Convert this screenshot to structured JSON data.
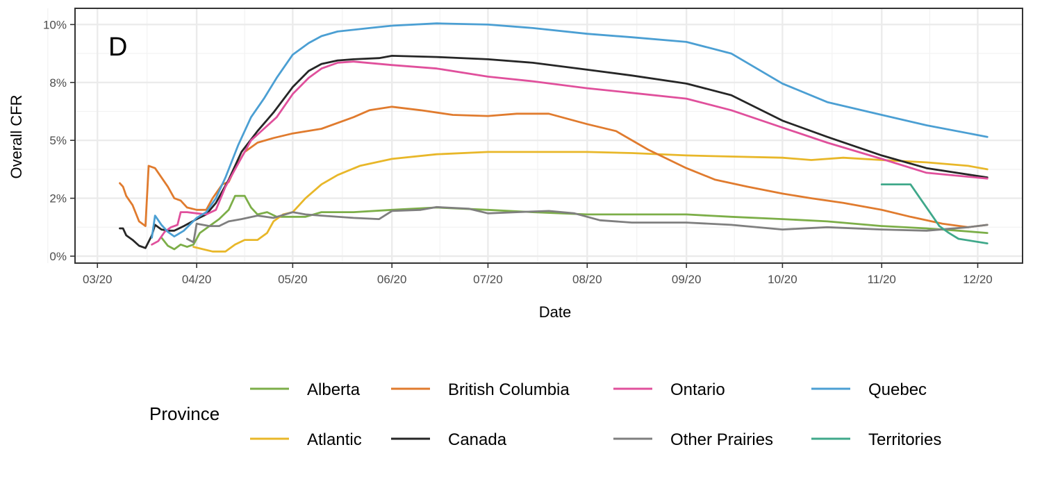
{
  "chart_data": {
    "type": "line",
    "panel_label": "D",
    "xlabel": "Date",
    "ylabel": "Overall CFR",
    "x_ticks": [
      "03/20",
      "04/20",
      "05/20",
      "06/20",
      "07/20",
      "08/20",
      "09/20",
      "10/20",
      "11/20",
      "12/20"
    ],
    "y_ticks": [
      "0%",
      "2%",
      "5%",
      "8%",
      "10%"
    ],
    "y_tick_values": [
      0,
      0.025,
      0.05,
      0.075,
      0.1
    ],
    "xlim": [
      "2020-02-23",
      "2020-12-15"
    ],
    "ylim": [
      -0.003,
      0.107
    ],
    "grid": true,
    "legend": {
      "title": "Province",
      "position": "bottom"
    },
    "series": [
      {
        "name": "Alberta",
        "color": "#7CAE48",
        "points": [
          [
            "2020-03-21",
            0.008
          ],
          [
            "2020-03-23",
            0.0045
          ],
          [
            "2020-03-25",
            0.003
          ],
          [
            "2020-03-27",
            0.005
          ],
          [
            "2020-03-29",
            0.004
          ],
          [
            "2020-03-31",
            0.005
          ],
          [
            "2020-04-02",
            0.01
          ],
          [
            "2020-04-05",
            0.013
          ],
          [
            "2020-04-08",
            0.016
          ],
          [
            "2020-04-11",
            0.02
          ],
          [
            "2020-04-13",
            0.026
          ],
          [
            "2020-04-16",
            0.026
          ],
          [
            "2020-04-18",
            0.021
          ],
          [
            "2020-04-20",
            0.018
          ],
          [
            "2020-04-23",
            0.019
          ],
          [
            "2020-04-26",
            0.017
          ],
          [
            "2020-04-30",
            0.017
          ],
          [
            "2020-05-05",
            0.017
          ],
          [
            "2020-05-10",
            0.019
          ],
          [
            "2020-05-20",
            0.019
          ],
          [
            "2020-06-01",
            0.02
          ],
          [
            "2020-06-15",
            0.021
          ],
          [
            "2020-07-01",
            0.02
          ],
          [
            "2020-07-15",
            0.019
          ],
          [
            "2020-08-01",
            0.018
          ],
          [
            "2020-08-15",
            0.018
          ],
          [
            "2020-09-01",
            0.018
          ],
          [
            "2020-09-15",
            0.017
          ],
          [
            "2020-10-01",
            0.016
          ],
          [
            "2020-10-15",
            0.015
          ],
          [
            "2020-11-01",
            0.013
          ],
          [
            "2020-11-15",
            0.012
          ],
          [
            "2020-11-25",
            0.011
          ],
          [
            "2020-12-04",
            0.01
          ]
        ]
      },
      {
        "name": "Atlantic",
        "color": "#E8B729",
        "points": [
          [
            "2020-03-31",
            0.004
          ],
          [
            "2020-04-03",
            0.003
          ],
          [
            "2020-04-06",
            0.002
          ],
          [
            "2020-04-10",
            0.002
          ],
          [
            "2020-04-13",
            0.005
          ],
          [
            "2020-04-16",
            0.007
          ],
          [
            "2020-04-20",
            0.007
          ],
          [
            "2020-04-23",
            0.01
          ],
          [
            "2020-04-25",
            0.015
          ],
          [
            "2020-04-28",
            0.018
          ],
          [
            "2020-05-01",
            0.019
          ],
          [
            "2020-05-05",
            0.025
          ],
          [
            "2020-05-10",
            0.031
          ],
          [
            "2020-05-15",
            0.035
          ],
          [
            "2020-05-22",
            0.039
          ],
          [
            "2020-06-01",
            0.042
          ],
          [
            "2020-06-15",
            0.044
          ],
          [
            "2020-07-01",
            0.045
          ],
          [
            "2020-07-15",
            0.045
          ],
          [
            "2020-08-01",
            0.045
          ],
          [
            "2020-08-15",
            0.0445
          ],
          [
            "2020-09-01",
            0.0435
          ],
          [
            "2020-09-15",
            0.043
          ],
          [
            "2020-10-01",
            0.0425
          ],
          [
            "2020-10-10",
            0.0415
          ],
          [
            "2020-10-20",
            0.0425
          ],
          [
            "2020-11-01",
            0.0415
          ],
          [
            "2020-11-15",
            0.0405
          ],
          [
            "2020-11-28",
            0.039
          ],
          [
            "2020-12-04",
            0.0375
          ]
        ]
      },
      {
        "name": "British Columbia",
        "color": "#E07B2E",
        "points": [
          [
            "2020-03-08",
            0.0315
          ],
          [
            "2020-03-09",
            0.03
          ],
          [
            "2020-03-10",
            0.026
          ],
          [
            "2020-03-12",
            0.022
          ],
          [
            "2020-03-14",
            0.015
          ],
          [
            "2020-03-16",
            0.013
          ],
          [
            "2020-03-17",
            0.039
          ],
          [
            "2020-03-19",
            0.038
          ],
          [
            "2020-03-21",
            0.034
          ],
          [
            "2020-03-23",
            0.03
          ],
          [
            "2020-03-25",
            0.025
          ],
          [
            "2020-03-27",
            0.024
          ],
          [
            "2020-03-29",
            0.021
          ],
          [
            "2020-04-01",
            0.02
          ],
          [
            "2020-04-04",
            0.02
          ],
          [
            "2020-04-06",
            0.025
          ],
          [
            "2020-04-09",
            0.031
          ],
          [
            "2020-04-11",
            0.032
          ],
          [
            "2020-04-13",
            0.038
          ],
          [
            "2020-04-16",
            0.045
          ],
          [
            "2020-04-20",
            0.049
          ],
          [
            "2020-04-25",
            0.051
          ],
          [
            "2020-05-01",
            0.053
          ],
          [
            "2020-05-10",
            0.055
          ],
          [
            "2020-05-20",
            0.06
          ],
          [
            "2020-05-25",
            0.063
          ],
          [
            "2020-06-01",
            0.0645
          ],
          [
            "2020-06-10",
            0.063
          ],
          [
            "2020-06-20",
            0.061
          ],
          [
            "2020-07-01",
            0.0605
          ],
          [
            "2020-07-10",
            0.0615
          ],
          [
            "2020-07-20",
            0.0615
          ],
          [
            "2020-08-01",
            0.057
          ],
          [
            "2020-08-10",
            0.054
          ],
          [
            "2020-08-20",
            0.046
          ],
          [
            "2020-09-01",
            0.038
          ],
          [
            "2020-09-10",
            0.033
          ],
          [
            "2020-09-20",
            0.03
          ],
          [
            "2020-10-01",
            0.027
          ],
          [
            "2020-10-10",
            0.025
          ],
          [
            "2020-10-20",
            0.023
          ],
          [
            "2020-11-01",
            0.02
          ],
          [
            "2020-11-10",
            0.017
          ],
          [
            "2020-11-20",
            0.014
          ],
          [
            "2020-11-28",
            0.0125
          ],
          [
            "2020-12-04",
            0.0135
          ]
        ]
      },
      {
        "name": "Canada",
        "color": "#262626",
        "points": [
          [
            "2020-03-08",
            0.012
          ],
          [
            "2020-03-09",
            0.012
          ],
          [
            "2020-03-10",
            0.009
          ],
          [
            "2020-03-12",
            0.007
          ],
          [
            "2020-03-14",
            0.0045
          ],
          [
            "2020-03-16",
            0.0035
          ],
          [
            "2020-03-18",
            0.009
          ],
          [
            "2020-03-19",
            0.0135
          ],
          [
            "2020-03-21",
            0.0115
          ],
          [
            "2020-03-23",
            0.011
          ],
          [
            "2020-03-25",
            0.011
          ],
          [
            "2020-03-28",
            0.013
          ],
          [
            "2020-04-01",
            0.016
          ],
          [
            "2020-04-04",
            0.018
          ],
          [
            "2020-04-07",
            0.023
          ],
          [
            "2020-04-11",
            0.033
          ],
          [
            "2020-04-15",
            0.045
          ],
          [
            "2020-04-20",
            0.054
          ],
          [
            "2020-04-25",
            0.062
          ],
          [
            "2020-05-01",
            0.073
          ],
          [
            "2020-05-06",
            0.08
          ],
          [
            "2020-05-10",
            0.083
          ],
          [
            "2020-05-15",
            0.0845
          ],
          [
            "2020-05-20",
            0.085
          ],
          [
            "2020-05-28",
            0.0855
          ],
          [
            "2020-06-01",
            0.0865
          ],
          [
            "2020-06-15",
            0.086
          ],
          [
            "2020-07-01",
            0.085
          ],
          [
            "2020-07-15",
            0.0835
          ],
          [
            "2020-08-01",
            0.0805
          ],
          [
            "2020-08-15",
            0.078
          ],
          [
            "2020-09-01",
            0.0745
          ],
          [
            "2020-09-15",
            0.0695
          ],
          [
            "2020-10-01",
            0.0585
          ],
          [
            "2020-10-15",
            0.0515
          ],
          [
            "2020-11-01",
            0.0435
          ],
          [
            "2020-11-15",
            0.038
          ],
          [
            "2020-12-04",
            0.034
          ]
        ]
      },
      {
        "name": "Ontario",
        "color": "#E0509C",
        "points": [
          [
            "2020-03-18",
            0.005
          ],
          [
            "2020-03-20",
            0.0065
          ],
          [
            "2020-03-22",
            0.0105
          ],
          [
            "2020-03-24",
            0.0125
          ],
          [
            "2020-03-26",
            0.0135
          ],
          [
            "2020-03-27",
            0.019
          ],
          [
            "2020-03-29",
            0.019
          ],
          [
            "2020-04-01",
            0.0185
          ],
          [
            "2020-04-04",
            0.018
          ],
          [
            "2020-04-07",
            0.02
          ],
          [
            "2020-04-10",
            0.03
          ],
          [
            "2020-04-14",
            0.04
          ],
          [
            "2020-04-18",
            0.05
          ],
          [
            "2020-04-22",
            0.055
          ],
          [
            "2020-04-26",
            0.06
          ],
          [
            "2020-05-01",
            0.07
          ],
          [
            "2020-05-06",
            0.077
          ],
          [
            "2020-05-10",
            0.081
          ],
          [
            "2020-05-15",
            0.0835
          ],
          [
            "2020-05-20",
            0.084
          ],
          [
            "2020-06-01",
            0.0825
          ],
          [
            "2020-06-15",
            0.081
          ],
          [
            "2020-07-01",
            0.0775
          ],
          [
            "2020-07-15",
            0.0755
          ],
          [
            "2020-08-01",
            0.0725
          ],
          [
            "2020-08-15",
            0.0705
          ],
          [
            "2020-09-01",
            0.068
          ],
          [
            "2020-09-15",
            0.063
          ],
          [
            "2020-10-01",
            0.0555
          ],
          [
            "2020-10-15",
            0.049
          ],
          [
            "2020-11-01",
            0.042
          ],
          [
            "2020-11-15",
            0.036
          ],
          [
            "2020-12-04",
            0.0335
          ]
        ]
      },
      {
        "name": "Other Prairies",
        "color": "#7F7F7F",
        "points": [
          [
            "2020-03-29",
            0.0075
          ],
          [
            "2020-03-31",
            0.006
          ],
          [
            "2020-04-01",
            0.014
          ],
          [
            "2020-04-05",
            0.013
          ],
          [
            "2020-04-08",
            0.013
          ],
          [
            "2020-04-11",
            0.015
          ],
          [
            "2020-04-15",
            0.016
          ],
          [
            "2020-04-20",
            0.0175
          ],
          [
            "2020-04-25",
            0.0165
          ],
          [
            "2020-05-01",
            0.019
          ],
          [
            "2020-05-05",
            0.018
          ],
          [
            "2020-05-10",
            0.0175
          ],
          [
            "2020-05-20",
            0.0165
          ],
          [
            "2020-05-28",
            0.016
          ],
          [
            "2020-06-01",
            0.0195
          ],
          [
            "2020-06-10",
            0.02
          ],
          [
            "2020-06-15",
            0.0212
          ],
          [
            "2020-06-25",
            0.0205
          ],
          [
            "2020-07-01",
            0.0185
          ],
          [
            "2020-07-10",
            0.019
          ],
          [
            "2020-07-20",
            0.0195
          ],
          [
            "2020-07-28",
            0.0185
          ],
          [
            "2020-08-05",
            0.0155
          ],
          [
            "2020-08-15",
            0.0145
          ],
          [
            "2020-09-01",
            0.0145
          ],
          [
            "2020-09-15",
            0.0135
          ],
          [
            "2020-10-01",
            0.0115
          ],
          [
            "2020-10-15",
            0.0125
          ],
          [
            "2020-11-01",
            0.0115
          ],
          [
            "2020-11-15",
            0.011
          ],
          [
            "2020-11-28",
            0.0125
          ],
          [
            "2020-12-04",
            0.0135
          ]
        ]
      },
      {
        "name": "Quebec",
        "color": "#4B9FD3",
        "points": [
          [
            "2020-03-18",
            0.008
          ],
          [
            "2020-03-19",
            0.0175
          ],
          [
            "2020-03-21",
            0.0135
          ],
          [
            "2020-03-23",
            0.0105
          ],
          [
            "2020-03-25",
            0.0085
          ],
          [
            "2020-03-28",
            0.011
          ],
          [
            "2020-04-01",
            0.0165
          ],
          [
            "2020-04-04",
            0.019
          ],
          [
            "2020-04-07",
            0.025
          ],
          [
            "2020-04-10",
            0.034
          ],
          [
            "2020-04-14",
            0.048
          ],
          [
            "2020-04-18",
            0.06
          ],
          [
            "2020-04-22",
            0.068
          ],
          [
            "2020-04-26",
            0.077
          ],
          [
            "2020-05-01",
            0.087
          ],
          [
            "2020-05-06",
            0.092
          ],
          [
            "2020-05-10",
            0.095
          ],
          [
            "2020-05-15",
            0.097
          ],
          [
            "2020-05-25",
            0.0985
          ],
          [
            "2020-06-01",
            0.0995
          ],
          [
            "2020-06-15",
            0.1005
          ],
          [
            "2020-07-01",
            0.1
          ],
          [
            "2020-07-15",
            0.0985
          ],
          [
            "2020-08-01",
            0.096
          ],
          [
            "2020-08-15",
            0.0945
          ],
          [
            "2020-09-01",
            0.0925
          ],
          [
            "2020-09-15",
            0.0875
          ],
          [
            "2020-10-01",
            0.0745
          ],
          [
            "2020-10-15",
            0.0665
          ],
          [
            "2020-11-01",
            0.061
          ],
          [
            "2020-11-15",
            0.0565
          ],
          [
            "2020-12-04",
            0.0515
          ]
        ]
      },
      {
        "name": "Territories",
        "color": "#3FA88A",
        "points": [
          [
            "2020-11-01",
            0.031
          ],
          [
            "2020-11-07",
            0.031
          ],
          [
            "2020-11-10",
            0.031
          ],
          [
            "2020-11-13",
            0.025
          ],
          [
            "2020-11-16",
            0.019
          ],
          [
            "2020-11-19",
            0.013
          ],
          [
            "2020-11-22",
            0.01
          ],
          [
            "2020-11-25",
            0.0075
          ],
          [
            "2020-12-04",
            0.0055
          ]
        ]
      }
    ]
  }
}
